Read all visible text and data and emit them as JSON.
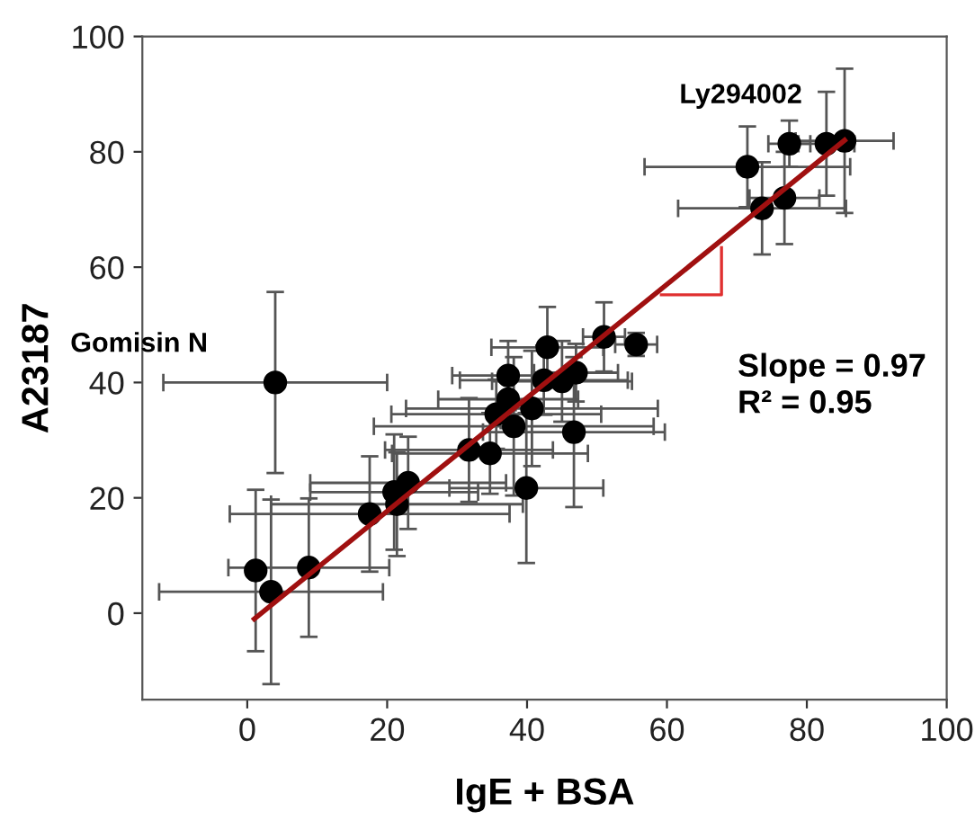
{
  "chart_data": {
    "type": "scatter",
    "xlabel": "IgE + BSA",
    "ylabel": "A23187",
    "xlim": [
      -15,
      100
    ],
    "ylim": [
      -15,
      100
    ],
    "xticks": [
      0,
      20,
      40,
      60,
      80,
      100
    ],
    "yticks": [
      0,
      20,
      40,
      60,
      80,
      100
    ],
    "grid": false,
    "series": [
      {
        "color": "#000000",
        "marker": "circle",
        "x": [
          1.2,
          3.4,
          8.8,
          4.0,
          17.5,
          21,
          21.4,
          23,
          31.7,
          34.7,
          39.9,
          46.7,
          38.1,
          37.3,
          35.6,
          40.7,
          37.3,
          42.4,
          45,
          47,
          42.9,
          51,
          55.6,
          71.5,
          77.5,
          82.8,
          85.4,
          73.6,
          76.8
        ],
        "values": [
          7.4,
          3.7,
          7.9,
          40.0,
          17.2,
          21,
          18.9,
          22.6,
          28.3,
          27.7,
          21.7,
          31.4,
          32.4,
          37.1,
          34.5,
          35.5,
          41.2,
          40.4,
          40.2,
          41.7,
          46.1,
          47.9,
          46.6,
          77.4,
          81.4,
          81.4,
          81.9,
          70.2,
          72.0
        ],
        "errors": [
          14,
          16,
          12,
          15.7,
          10,
          10,
          9,
          8,
          9,
          7,
          13,
          13,
          12,
          5,
          6,
          10,
          6,
          6,
          7,
          5,
          7,
          6,
          2,
          7,
          4,
          9,
          12.5,
          8,
          8
        ],
        "xerrors": [
          null,
          16,
          11.5,
          16,
          20,
          12,
          18,
          14,
          12,
          14,
          11,
          13,
          20,
          10,
          15,
          18,
          8,
          12,
          10,
          6,
          8,
          3,
          3,
          14.7,
          3,
          4,
          7,
          12,
          5
        ]
      },
      {
        "type": "line",
        "color": "#a01010",
        "x": [
          1,
          85.4
        ],
        "values": [
          -1,
          82
        ]
      },
      {
        "type": "line",
        "color": "#e03030",
        "x": [
          59.2,
          67.8,
          67.8
        ],
        "values": [
          55.2,
          55.2,
          63.4
        ]
      }
    ],
    "annotations": [
      {
        "text": "Gomisin N",
        "x": 4.0,
        "y": 40.0
      },
      {
        "text": "Ly294002",
        "x": 77.5,
        "y": 81.4
      },
      "Slope = 0.97",
      "R² = 0.95"
    ]
  }
}
